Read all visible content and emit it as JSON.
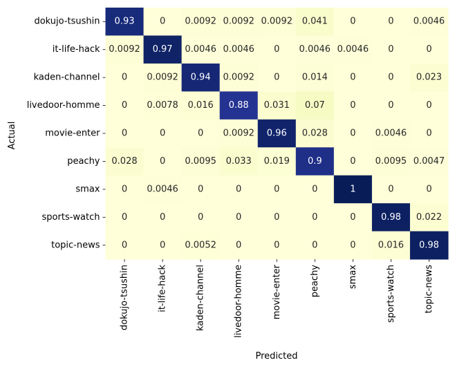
{
  "chart_data": {
    "type": "heatmap",
    "xlabel": "Predicted",
    "ylabel": "Actual",
    "x_categories": [
      "dokujo-tsushin",
      "it-life-hack",
      "kaden-channel",
      "livedoor-homme",
      "movie-enter",
      "peachy",
      "smax",
      "sports-watch",
      "topic-news"
    ],
    "y_categories": [
      "dokujo-tsushin",
      "it-life-hack",
      "kaden-channel",
      "livedoor-homme",
      "movie-enter",
      "peachy",
      "smax",
      "sports-watch",
      "topic-news"
    ],
    "values": [
      [
        0.93,
        0,
        0.0092,
        0.0092,
        0.0092,
        0.041,
        0,
        0,
        0.0046
      ],
      [
        0.0092,
        0.97,
        0.0046,
        0.0046,
        0,
        0.0046,
        0.0046,
        0,
        0
      ],
      [
        0,
        0.0092,
        0.94,
        0.0092,
        0,
        0.014,
        0,
        0,
        0.023
      ],
      [
        0,
        0.0078,
        0.016,
        0.88,
        0.031,
        0.07,
        0,
        0,
        0
      ],
      [
        0,
        0,
        0,
        0.0092,
        0.96,
        0.028,
        0,
        0.0046,
        0
      ],
      [
        0.028,
        0,
        0.0095,
        0.033,
        0.019,
        0.9,
        0,
        0.0095,
        0.0047
      ],
      [
        0,
        0.0046,
        0,
        0,
        0,
        0,
        1,
        0,
        0
      ],
      [
        0,
        0,
        0,
        0,
        0,
        0,
        0,
        0.98,
        0.022
      ],
      [
        0,
        0,
        0.0052,
        0,
        0,
        0,
        0,
        0.016,
        0.98
      ]
    ],
    "value_labels": [
      [
        "0.93",
        "0",
        "0.0092",
        "0.0092",
        "0.0092",
        "0.041",
        "0",
        "0",
        "0.0046"
      ],
      [
        "0.0092",
        "0.97",
        "0.0046",
        "0.0046",
        "0",
        "0.0046",
        "0.0046",
        "0",
        "0"
      ],
      [
        "0",
        "0.0092",
        "0.94",
        "0.0092",
        "0",
        "0.014",
        "0",
        "0",
        "0.023"
      ],
      [
        "0",
        "0.0078",
        "0.016",
        "0.88",
        "0.031",
        "0.07",
        "0",
        "0",
        "0"
      ],
      [
        "0",
        "0",
        "0",
        "0.0092",
        "0.96",
        "0.028",
        "0",
        "0.0046",
        "0"
      ],
      [
        "0.028",
        "0",
        "0.0095",
        "0.033",
        "0.019",
        "0.9",
        "0",
        "0.0095",
        "0.0047"
      ],
      [
        "0",
        "0.0046",
        "0",
        "0",
        "0",
        "0",
        "1",
        "0",
        "0"
      ],
      [
        "0",
        "0",
        "0",
        "0",
        "0",
        "0",
        "0",
        "0.98",
        "0.022"
      ],
      [
        "0",
        "0",
        "0.0052",
        "0",
        "0",
        "0",
        "0",
        "0.016",
        "0.98"
      ]
    ],
    "vmin": 0,
    "vmax": 1,
    "colormap": "YlGnBu",
    "colorbar": false,
    "grid": false
  }
}
